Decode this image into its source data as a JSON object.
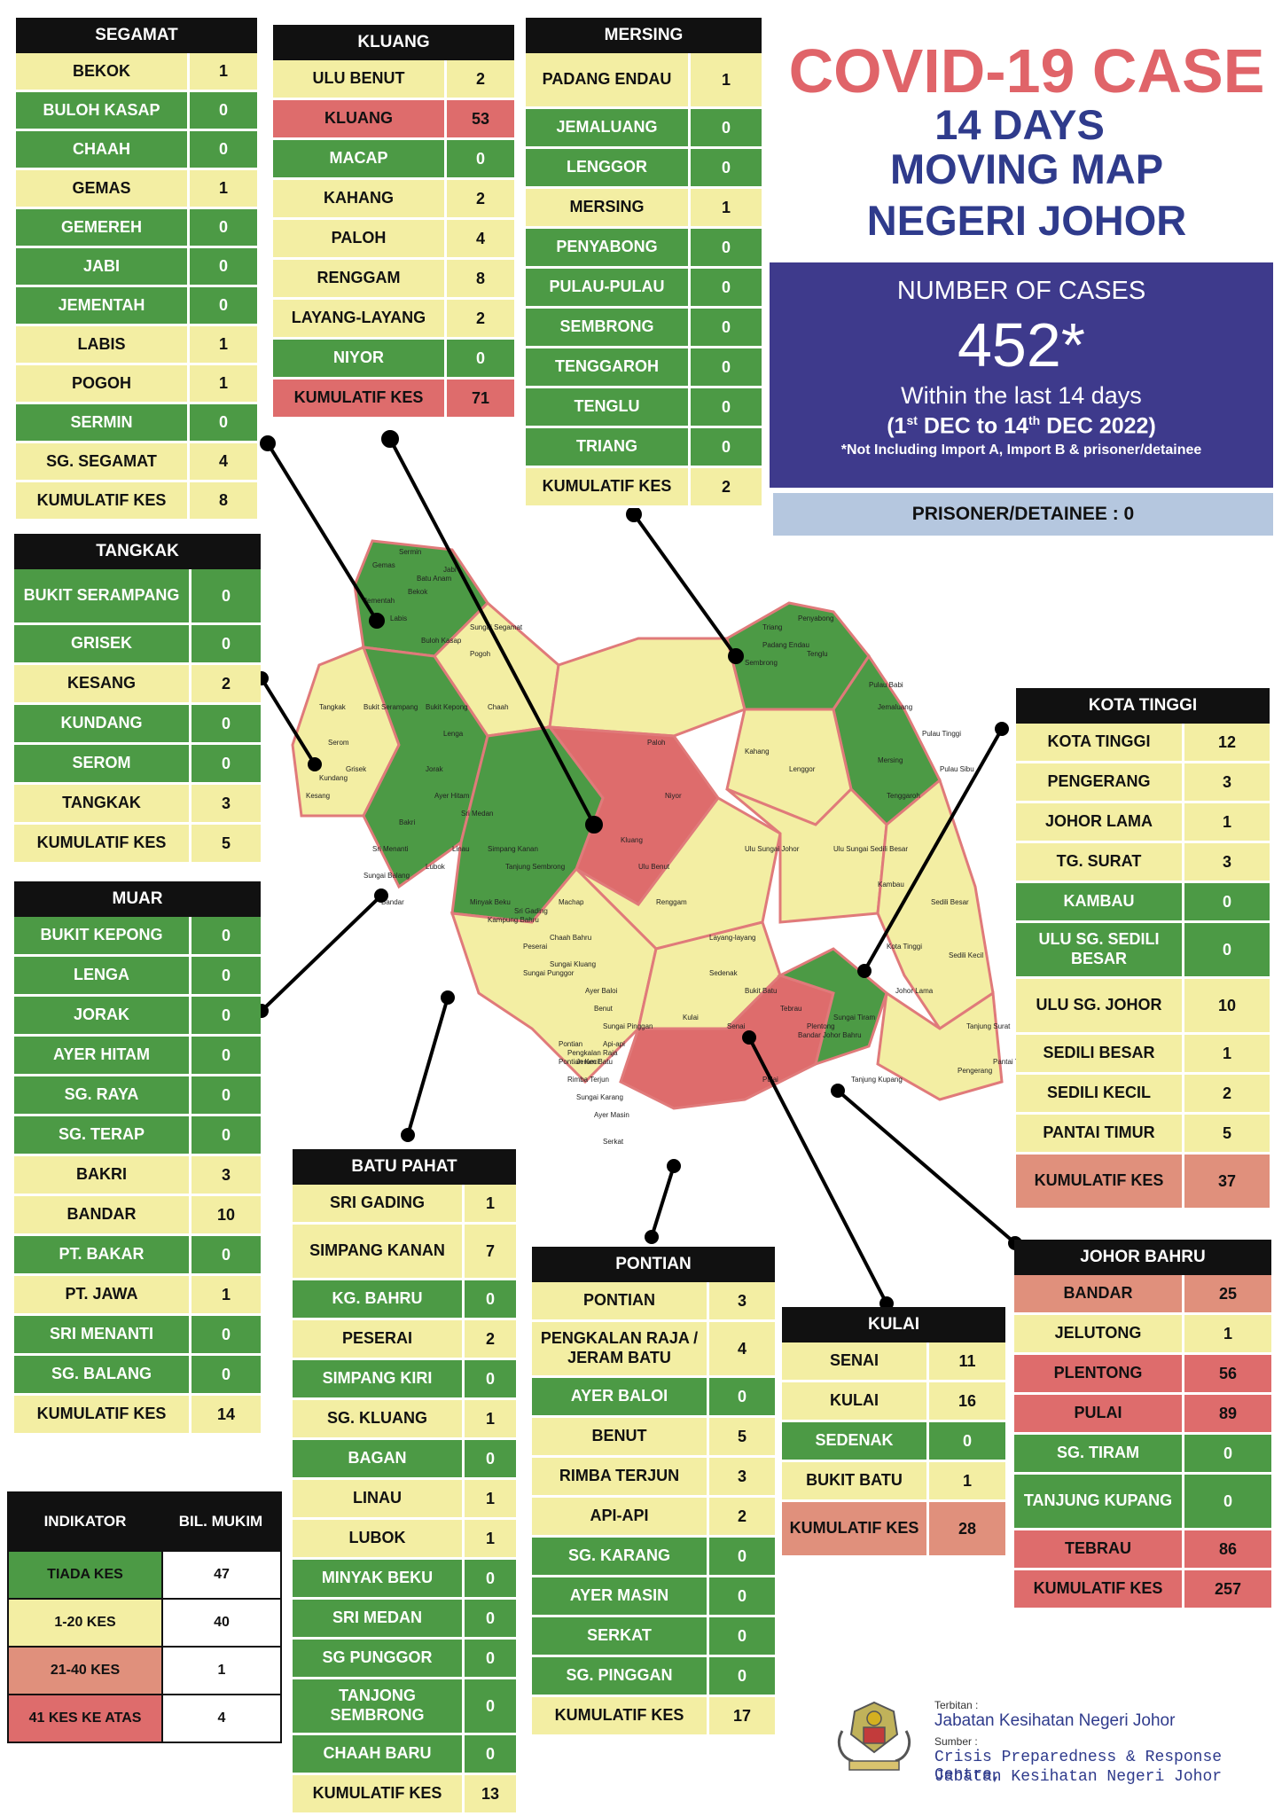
{
  "title": {
    "line1": "COVID-19 CASE",
    "line2": "14 DAYS",
    "line3": "MOVING MAP",
    "line4": "NEGERI JOHOR"
  },
  "summary": {
    "heading": "NUMBER OF CASES",
    "total": "452*",
    "within": "Within the last 14 days",
    "period_open": "(1",
    "period_st": "st",
    "period_mid": " DEC to 14",
    "period_th": "th",
    "period_close": " DEC 2022)",
    "note": "*Not Including Import A, Import B & prisoner/detainee",
    "prisoner": "PRISONER/DETAINEE : 0"
  },
  "colors": {
    "green": "#4c9a45",
    "yellow": "#f3eea3",
    "orange": "#e0907c",
    "red": "#de6c6c",
    "title_red": "#e06469",
    "title_navy": "#2f3b8c",
    "summary_bg": "#3e3a8c"
  },
  "districts": {
    "segamat": {
      "name": "SEGAMAT",
      "rows": [
        {
          "n": "BEKOK",
          "v": "1",
          "c": "y"
        },
        {
          "n": "BULOH KASAP",
          "v": "0",
          "c": "g"
        },
        {
          "n": "CHAAH",
          "v": "0",
          "c": "g"
        },
        {
          "n": "GEMAS",
          "v": "1",
          "c": "y"
        },
        {
          "n": "GEMEREH",
          "v": "0",
          "c": "g"
        },
        {
          "n": "JABI",
          "v": "0",
          "c": "g"
        },
        {
          "n": "JEMENTAH",
          "v": "0",
          "c": "g"
        },
        {
          "n": "LABIS",
          "v": "1",
          "c": "y"
        },
        {
          "n": "POGOH",
          "v": "1",
          "c": "y"
        },
        {
          "n": "SERMIN",
          "v": "0",
          "c": "g"
        },
        {
          "n": "SG. SEGAMAT",
          "v": "4",
          "c": "y"
        },
        {
          "n": "KUMULATIF KES",
          "v": "8",
          "c": "y"
        }
      ]
    },
    "kluang": {
      "name": "KLUANG",
      "rows": [
        {
          "n": "ULU BENUT",
          "v": "2",
          "c": "y"
        },
        {
          "n": "KLUANG",
          "v": "53",
          "c": "r"
        },
        {
          "n": "MACAP",
          "v": "0",
          "c": "g"
        },
        {
          "n": "KAHANG",
          "v": "2",
          "c": "y"
        },
        {
          "n": "PALOH",
          "v": "4",
          "c": "y"
        },
        {
          "n": "RENGGAM",
          "v": "8",
          "c": "y"
        },
        {
          "n": "LAYANG-LAYANG",
          "v": "2",
          "c": "y"
        },
        {
          "n": "NIYOR",
          "v": "0",
          "c": "g"
        },
        {
          "n": "KUMULATIF KES",
          "v": "71",
          "c": "r"
        }
      ]
    },
    "mersing": {
      "name": "MERSING",
      "rows": [
        {
          "n": "PADANG ENDAU",
          "v": "1",
          "c": "y"
        },
        {
          "n": "JEMALUANG",
          "v": "0",
          "c": "g"
        },
        {
          "n": "LENGGOR",
          "v": "0",
          "c": "g"
        },
        {
          "n": "MERSING",
          "v": "1",
          "c": "y"
        },
        {
          "n": "PENYABONG",
          "v": "0",
          "c": "g"
        },
        {
          "n": "PULAU-PULAU",
          "v": "0",
          "c": "g"
        },
        {
          "n": "SEMBRONG",
          "v": "0",
          "c": "g"
        },
        {
          "n": "TENGGAROH",
          "v": "0",
          "c": "g"
        },
        {
          "n": "TENGLU",
          "v": "0",
          "c": "g"
        },
        {
          "n": "TRIANG",
          "v": "0",
          "c": "g"
        },
        {
          "n": "KUMULATIF KES",
          "v": "2",
          "c": "y"
        }
      ]
    },
    "tangkak": {
      "name": "TANGKAK",
      "rows": [
        {
          "n": "BUKIT SERAMPANG",
          "v": "0",
          "c": "g"
        },
        {
          "n": "GRISEK",
          "v": "0",
          "c": "g"
        },
        {
          "n": "KESANG",
          "v": "2",
          "c": "y"
        },
        {
          "n": "KUNDANG",
          "v": "0",
          "c": "g"
        },
        {
          "n": "SEROM",
          "v": "0",
          "c": "g"
        },
        {
          "n": "TANGKAK",
          "v": "3",
          "c": "y"
        },
        {
          "n": "KUMULATIF KES",
          "v": "5",
          "c": "y"
        }
      ]
    },
    "muar": {
      "name": "MUAR",
      "rows": [
        {
          "n": "BUKIT KEPONG",
          "v": "0",
          "c": "g"
        },
        {
          "n": "LENGA",
          "v": "0",
          "c": "g"
        },
        {
          "n": "JORAK",
          "v": "0",
          "c": "g"
        },
        {
          "n": "AYER HITAM",
          "v": "0",
          "c": "g"
        },
        {
          "n": "SG. RAYA",
          "v": "0",
          "c": "g"
        },
        {
          "n": "SG. TERAP",
          "v": "0",
          "c": "g"
        },
        {
          "n": "BAKRI",
          "v": "3",
          "c": "y"
        },
        {
          "n": "BANDAR",
          "v": "10",
          "c": "y"
        },
        {
          "n": "PT. BAKAR",
          "v": "0",
          "c": "g"
        },
        {
          "n": "PT. JAWA",
          "v": "1",
          "c": "y"
        },
        {
          "n": "SRI MENANTI",
          "v": "0",
          "c": "g"
        },
        {
          "n": "SG. BALANG",
          "v": "0",
          "c": "g"
        },
        {
          "n": "KUMULATIF KES",
          "v": "14",
          "c": "y"
        }
      ]
    },
    "kota_tinggi": {
      "name": "KOTA TINGGI",
      "rows": [
        {
          "n": "KOTA TINGGI",
          "v": "12",
          "c": "y"
        },
        {
          "n": "PENGERANG",
          "v": "3",
          "c": "y"
        },
        {
          "n": "JOHOR LAMA",
          "v": "1",
          "c": "y"
        },
        {
          "n": "TG. SURAT",
          "v": "3",
          "c": "y"
        },
        {
          "n": "KAMBAU",
          "v": "0",
          "c": "g"
        },
        {
          "n": "ULU SG. SEDILI BESAR",
          "v": "0",
          "c": "g"
        },
        {
          "n": "ULU  SG. JOHOR",
          "v": "10",
          "c": "y"
        },
        {
          "n": "SEDILI BESAR",
          "v": "1",
          "c": "y"
        },
        {
          "n": "SEDILI KECIL",
          "v": "2",
          "c": "y"
        },
        {
          "n": "PANTAI TIMUR",
          "v": "5",
          "c": "y"
        },
        {
          "n": "KUMULATIF KES",
          "v": "37",
          "c": "o"
        }
      ]
    },
    "batu_pahat": {
      "name": "BATU PAHAT",
      "rows": [
        {
          "n": "SRI GADING",
          "v": "1",
          "c": "y"
        },
        {
          "n": "SIMPANG KANAN",
          "v": "7",
          "c": "y"
        },
        {
          "n": "KG. BAHRU",
          "v": "0",
          "c": "g"
        },
        {
          "n": "PESERAI",
          "v": "2",
          "c": "y"
        },
        {
          "n": "SIMPANG KIRI",
          "v": "0",
          "c": "g"
        },
        {
          "n": "SG. KLUANG",
          "v": "1",
          "c": "y"
        },
        {
          "n": "BAGAN",
          "v": "0",
          "c": "g"
        },
        {
          "n": "LINAU",
          "v": "1",
          "c": "y"
        },
        {
          "n": "LUBOK",
          "v": "1",
          "c": "y"
        },
        {
          "n": "MINYAK BEKU",
          "v": "0",
          "c": "g"
        },
        {
          "n": "SRI MEDAN",
          "v": "0",
          "c": "g"
        },
        {
          "n": "SG PUNGGOR",
          "v": "0",
          "c": "g"
        },
        {
          "n": "TANJONG SEMBRONG",
          "v": "0",
          "c": "g"
        },
        {
          "n": "CHAAH BARU",
          "v": "0",
          "c": "g"
        },
        {
          "n": "KUMULATIF KES",
          "v": "13",
          "c": "y"
        }
      ]
    },
    "pontian": {
      "name": "PONTIAN",
      "rows": [
        {
          "n": "PONTIAN",
          "v": "3",
          "c": "y"
        },
        {
          "n": "PENGKALAN RAJA / JERAM BATU",
          "v": "4",
          "c": "y"
        },
        {
          "n": "AYER BALOI",
          "v": "0",
          "c": "g"
        },
        {
          "n": "BENUT",
          "v": "5",
          "c": "y"
        },
        {
          "n": "RIMBA TERJUN",
          "v": "3",
          "c": "y"
        },
        {
          "n": "API-API",
          "v": "2",
          "c": "y"
        },
        {
          "n": "SG. KARANG",
          "v": "0",
          "c": "g"
        },
        {
          "n": "AYER MASIN",
          "v": "0",
          "c": "g"
        },
        {
          "n": "SERKAT",
          "v": "0",
          "c": "g"
        },
        {
          "n": "SG. PINGGAN",
          "v": "0",
          "c": "g"
        },
        {
          "n": "KUMULATIF KES",
          "v": "17",
          "c": "y"
        }
      ]
    },
    "kulai": {
      "name": "KULAI",
      "rows": [
        {
          "n": "SENAI",
          "v": "11",
          "c": "y"
        },
        {
          "n": "KULAI",
          "v": "16",
          "c": "y"
        },
        {
          "n": "SEDENAK",
          "v": "0",
          "c": "g"
        },
        {
          "n": "BUKIT BATU",
          "v": "1",
          "c": "y"
        },
        {
          "n": "KUMULATIF KES",
          "v": "28",
          "c": "o"
        }
      ]
    },
    "johor_bahru": {
      "name": "JOHOR BAHRU",
      "rows": [
        {
          "n": "BANDAR",
          "v": "25",
          "c": "o"
        },
        {
          "n": "JELUTONG",
          "v": "1",
          "c": "y"
        },
        {
          "n": "PLENTONG",
          "v": "56",
          "c": "r"
        },
        {
          "n": "PULAI",
          "v": "89",
          "c": "r"
        },
        {
          "n": "SG. TIRAM",
          "v": "0",
          "c": "g"
        },
        {
          "n": "TANJUNG KUPANG",
          "v": "0",
          "c": "g"
        },
        {
          "n": "TEBRAU",
          "v": "86",
          "c": "r"
        },
        {
          "n": "KUMULATIF KES",
          "v": "257",
          "c": "r"
        }
      ]
    }
  },
  "legend": {
    "col1": "INDIKATOR",
    "col2": "BIL. MUKIM",
    "rows": [
      {
        "label": "TIADA KES",
        "count": "47",
        "c": "g"
      },
      {
        "label": "1-20 KES",
        "count": "40",
        "c": "y"
      },
      {
        "label": "21-40 KES",
        "count": "1",
        "c": "o"
      },
      {
        "label": "41 KES KE ATAS",
        "count": "4",
        "c": "r"
      }
    ]
  },
  "map_labels": {
    "segamat_area": [
      "Gemas",
      "Bekok",
      "Labis",
      "Jabi",
      "Sermin",
      "Buloh Kasap",
      "Sungai Segamat",
      "Pogoh",
      "Jementah",
      "Batu Anam",
      "Chaah"
    ],
    "east_area": [
      "Triang",
      "Penyabong",
      "Tenglu",
      "Sembrong",
      "Padang Endau",
      "Pulau Babi",
      "Pulau Tinggi",
      "Pulau Sibu",
      "Jemaluang",
      "Mersing",
      "Lenggor",
      "Tenggaroh",
      "Kahang",
      "Paloh",
      "Niyor",
      "Kluang"
    ],
    "south_area": [
      "Renggam",
      "Layang-layang",
      "Ulu Sungai Johor",
      "Ulu Sungai Sedili Besar",
      "Kambau",
      "Sedili Besar",
      "Sedili Kecil",
      "Kota Tinggi",
      "Johor Lama",
      "Tanjung Surat",
      "Pengerang",
      "Pantai Timur",
      "Sedenak",
      "Bukit Batu",
      "Kulai",
      "Senai",
      "Tebrau",
      "Plentong",
      "Bandar Johor Bahru",
      "Pulai",
      "Sungai Tiram",
      "Tanjung Kupang"
    ],
    "west_area": [
      "Tangkak",
      "Serom",
      "Grisek",
      "Kundang",
      "Kesang",
      "Bukit Serampang",
      "Bukit Kepong",
      "Lenga",
      "Jorak",
      "Ayer Hitam",
      "Sri Medan",
      "Bakri",
      "Sri Menanti",
      "Sungai Balang",
      "Lubok",
      "Linau",
      "Simpang Kanan",
      "Minyak Beku",
      "Kampung Bahru",
      "Sri Gading",
      "Peserai",
      "Sungai Punggor",
      "Sungai Kluang",
      "Machap",
      "Ulu Benut",
      "Benut",
      "Sungai Pinggan",
      "Ayer Baloi",
      "Api-api",
      "Pontian",
      "Pontian Kecil",
      "Jeram Batu",
      "Rimba Terjun",
      "Sungai Karang",
      "Ayer Masin",
      "Serkat",
      "Chaah Bahru",
      "Tanjung Sembrong",
      "Pengkalan Raja",
      "Bandar"
    ]
  },
  "footer": {
    "terbitan_label": "Terbitan :",
    "terbitan": "Jabatan Kesihatan Negeri Johor",
    "sumber_label": "Sumber :",
    "sumber1": "Crisis Preparedness & Response Centre,",
    "sumber2": "Jabatan Kesihatan Negeri Johor"
  }
}
